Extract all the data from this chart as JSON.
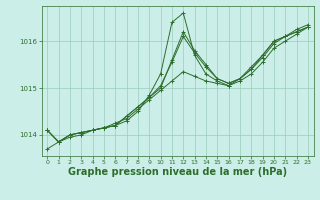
{
  "background_color": "#cceee8",
  "plot_bg_color": "#cceee8",
  "grid_color": "#99ccbb",
  "line_color": "#2d6e2d",
  "xlabel": "Graphe pression niveau de la mer (hPa)",
  "xlabel_fontsize": 7,
  "xlabel_color": "#2d6e2d",
  "yticks": [
    1014,
    1015,
    1016
  ],
  "ylim": [
    1013.55,
    1016.75
  ],
  "xlim": [
    -0.5,
    23.5
  ],
  "xticks": [
    0,
    1,
    2,
    3,
    4,
    5,
    6,
    7,
    8,
    9,
    10,
    11,
    12,
    13,
    14,
    15,
    16,
    17,
    18,
    19,
    20,
    21,
    22,
    23
  ],
  "series": [
    [
      1013.7,
      1013.85,
      1013.95,
      1014.0,
      1014.1,
      1014.15,
      1014.25,
      1014.35,
      1014.55,
      1014.75,
      1014.95,
      1015.15,
      1015.35,
      1015.25,
      1015.15,
      1015.1,
      1015.05,
      1015.15,
      1015.3,
      1015.55,
      1015.85,
      1016.0,
      1016.15,
      1016.3
    ],
    [
      1014.1,
      1013.85,
      1014.0,
      1014.05,
      1014.1,
      1014.15,
      1014.2,
      1014.4,
      1014.6,
      1014.8,
      1015.0,
      1015.6,
      1016.2,
      1015.8,
      1015.5,
      1015.2,
      1015.1,
      1015.2,
      1015.4,
      1015.7,
      1016.0,
      1016.1,
      1016.2,
      1016.3
    ],
    [
      1014.1,
      1013.85,
      1014.0,
      1014.05,
      1014.1,
      1014.15,
      1014.2,
      1014.3,
      1014.5,
      1014.85,
      1015.3,
      1016.4,
      1016.6,
      1015.7,
      1015.3,
      1015.15,
      1015.05,
      1015.2,
      1015.45,
      1015.7,
      1016.0,
      1016.1,
      1016.25,
      1016.35
    ],
    [
      1014.1,
      1013.85,
      1014.0,
      1014.05,
      1014.1,
      1014.15,
      1014.2,
      1014.4,
      1014.6,
      1014.8,
      1015.05,
      1015.55,
      1016.1,
      1015.75,
      1015.45,
      1015.2,
      1015.1,
      1015.2,
      1015.4,
      1015.65,
      1015.95,
      1016.1,
      1016.2,
      1016.3
    ]
  ]
}
